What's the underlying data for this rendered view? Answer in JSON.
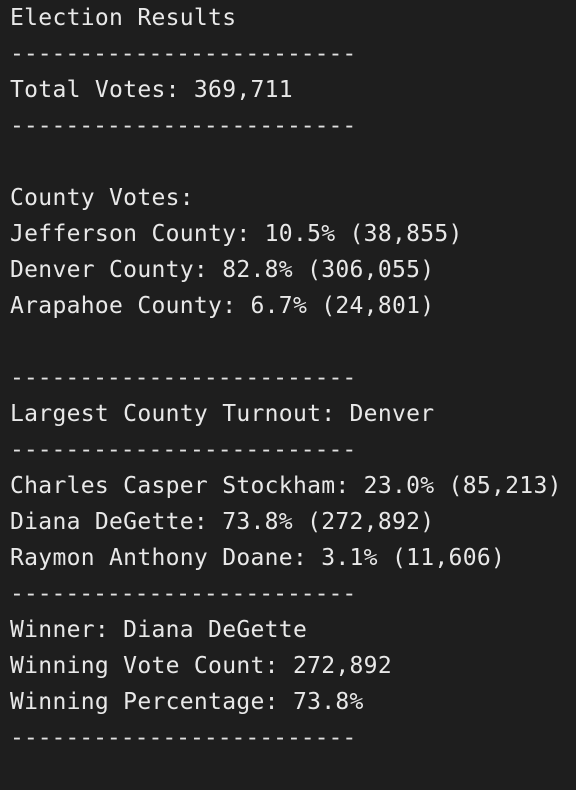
{
  "title": "Election Results",
  "separator": "-------------------------",
  "total_votes": "Total Votes: 369,711",
  "county_header": "County Votes:",
  "counties": [
    "Jefferson County: 10.5% (38,855)",
    "Denver County: 82.8% (306,055)",
    "Arapahoe County: 6.7% (24,801)"
  ],
  "largest_county": "Largest County Turnout: Denver",
  "candidates": [
    "Charles Casper Stockham: 23.0% (85,213)",
    "Diana DeGette: 73.8% (272,892)",
    "Raymon Anthony Doane: 3.1% (11,606)"
  ],
  "winner": "Winner: Diana DeGette",
  "winning_vote_count": "Winning Vote Count: 272,892",
  "winning_percentage": "Winning Percentage: 73.8%"
}
